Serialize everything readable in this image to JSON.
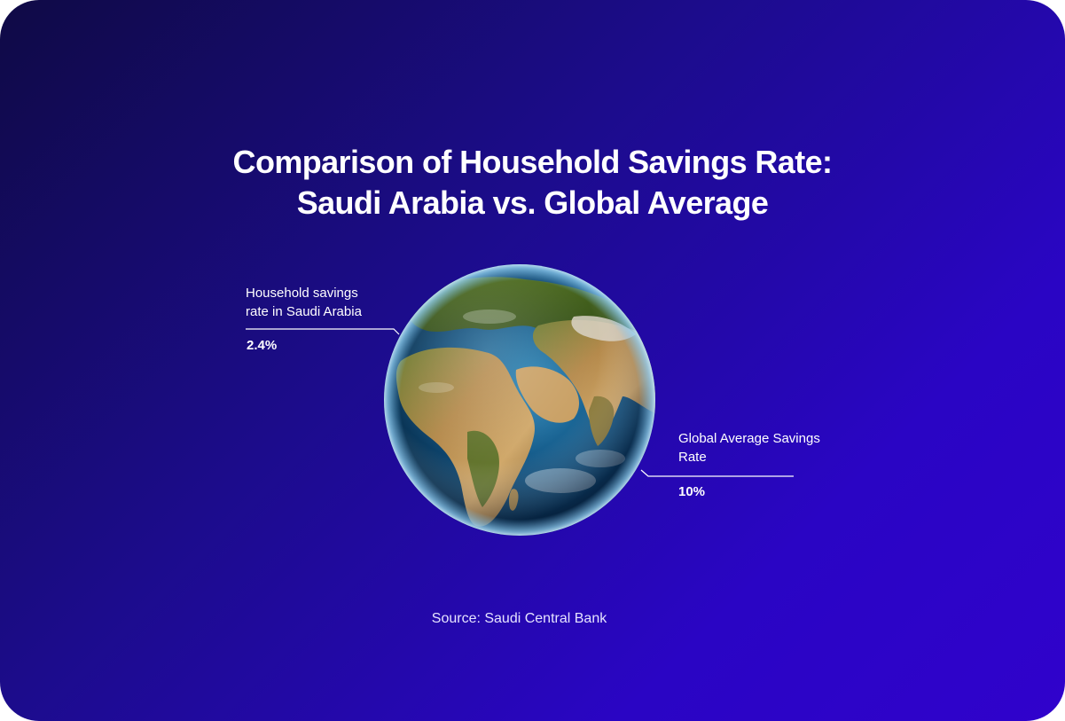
{
  "title_line1": "Comparison of Household Savings Rate:",
  "title_line2": "Saudi Arabia vs. Global Average",
  "chart_data": {
    "type": "table",
    "title": "Comparison of Household Savings Rate: Saudi Arabia vs. Global Average",
    "categories": [
      "Household savings rate in Saudi Arabia",
      "Global Average Savings Rate"
    ],
    "values": [
      2.4,
      10
    ],
    "unit": "%",
    "items": [
      {
        "label_line1": "Household savings",
        "label_line2": "rate in Saudi Arabia",
        "value": "2.4%"
      },
      {
        "label_line1": "Global Average Savings",
        "label_line2": "Rate",
        "value": "10%"
      }
    ]
  },
  "source": "Source: Saudi Central Bank",
  "colors": {
    "background_start": "#0f0a45",
    "background_end": "#3002cc",
    "text": "#ffffff",
    "leader_line": "#ffffff"
  },
  "icons": {
    "globe": "earth-globe-icon"
  }
}
